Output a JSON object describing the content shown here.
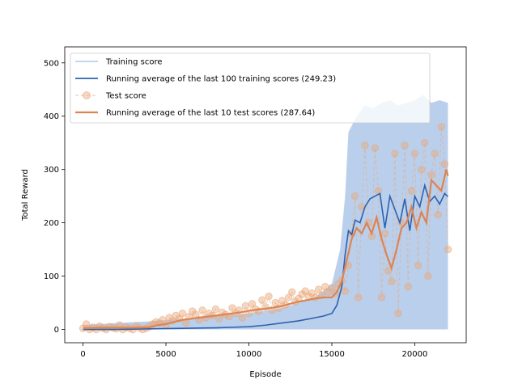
{
  "chart_data": {
    "type": "line",
    "title": "",
    "xlabel": "Episode",
    "ylabel": "Total Reward",
    "xlim": [
      -1100,
      23100
    ],
    "ylim": [
      -25,
      530
    ],
    "xticks": [
      0,
      5000,
      10000,
      15000,
      20000
    ],
    "yticks": [
      0,
      100,
      200,
      300,
      400,
      500
    ],
    "grid": false,
    "legend_position": "top-left",
    "colors": {
      "training": "#aec7e8",
      "running_train": "#2b63b0",
      "test": "#e8a87c",
      "running_test": "#dd8452"
    },
    "legend": [
      "Training score",
      "Running average of the last 100 training scores (249.23)",
      "Test score",
      "Running average of the last 10 test scores (287.64)"
    ],
    "series": [
      {
        "name": "Training score",
        "kind": "band",
        "x": [
          0,
          2000,
          4000,
          6000,
          8000,
          10000,
          11000,
          12000,
          13000,
          14000,
          15000,
          15500,
          15800,
          16000,
          16500,
          17000,
          17500,
          18000,
          18500,
          19000,
          19500,
          20000,
          20500,
          21000,
          21500,
          22000
        ],
        "low": [
          0,
          0,
          0,
          0,
          0,
          0,
          0,
          0,
          0,
          0,
          0,
          0,
          0,
          0,
          0,
          0,
          0,
          0,
          0,
          0,
          0,
          0,
          0,
          0,
          0,
          0
        ],
        "high": [
          8,
          12,
          15,
          20,
          25,
          30,
          35,
          40,
          50,
          60,
          85,
          150,
          250,
          370,
          400,
          420,
          415,
          425,
          430,
          420,
          425,
          430,
          440,
          425,
          430,
          425
        ]
      },
      {
        "name": "Running average of the last 100 training scores (249.23)",
        "x": [
          0,
          2000,
          4000,
          6000,
          8000,
          9000,
          10000,
          11000,
          12000,
          13000,
          14000,
          14500,
          15000,
          15300,
          15600,
          15800,
          16000,
          16200,
          16400,
          16700,
          17000,
          17300,
          17600,
          17900,
          18200,
          18500,
          18800,
          19100,
          19400,
          19700,
          20000,
          20300,
          20600,
          20900,
          21200,
          21500,
          21800,
          22000
        ],
        "values": [
          0,
          0,
          1,
          2,
          3,
          4,
          5,
          8,
          12,
          16,
          22,
          25,
          30,
          45,
          80,
          140,
          185,
          178,
          205,
          200,
          230,
          245,
          250,
          255,
          190,
          250,
          225,
          200,
          245,
          185,
          250,
          230,
          270,
          240,
          250,
          235,
          255,
          249
        ]
      },
      {
        "name": "Test score",
        "kind": "scatter",
        "x": [
          0,
          200,
          400,
          600,
          800,
          1000,
          1200,
          1400,
          1600,
          1800,
          2000,
          2200,
          2400,
          2600,
          2800,
          3000,
          3200,
          3400,
          3600,
          3800,
          4000,
          4200,
          4400,
          4600,
          4800,
          5000,
          5200,
          5400,
          5600,
          5800,
          6000,
          6200,
          6400,
          6600,
          6800,
          7000,
          7200,
          7400,
          7600,
          7800,
          8000,
          8200,
          8400,
          8600,
          8800,
          9000,
          9200,
          9400,
          9600,
          9800,
          10000,
          10200,
          10400,
          10600,
          10800,
          11000,
          11200,
          11400,
          11600,
          11800,
          12000,
          12200,
          12400,
          12600,
          12800,
          13000,
          13200,
          13400,
          13600,
          13800,
          14000,
          14200,
          14400,
          14600,
          14800,
          15000,
          15200,
          15400,
          15600,
          15800,
          16000,
          16200,
          16400,
          16600,
          16800,
          17000,
          17200,
          17400,
          17600,
          17800,
          18000,
          18200,
          18400,
          18600,
          18800,
          19000,
          19200,
          19400,
          19600,
          19800,
          20000,
          20200,
          20400,
          20600,
          20800,
          21000,
          21200,
          21400,
          21600,
          21800,
          22000
        ],
        "values": [
          2,
          10,
          0,
          4,
          0,
          6,
          2,
          0,
          5,
          3,
          1,
          8,
          0,
          4,
          2,
          0,
          6,
          3,
          0,
          2,
          5,
          10,
          14,
          12,
          18,
          8,
          22,
          16,
          26,
          20,
          30,
          12,
          24,
          34,
          28,
          18,
          36,
          22,
          30,
          26,
          38,
          20,
          32,
          28,
          24,
          40,
          30,
          36,
          22,
          44,
          30,
          48,
          38,
          34,
          55,
          42,
          62,
          36,
          50,
          40,
          54,
          46,
          60,
          70,
          52,
          58,
          66,
          72,
          62,
          68,
          60,
          75,
          64,
          80,
          70,
          78,
          68,
          85,
          92,
          72,
          120,
          180,
          250,
          60,
          230,
          345,
          200,
          175,
          340,
          260,
          60,
          180,
          110,
          90,
          330,
          30,
          200,
          345,
          80,
          260,
          330,
          120,
          300,
          350,
          100,
          290,
          330,
          215,
          380,
          310,
          150
        ]
      },
      {
        "name": "Running average of the last 10 test scores (287.64)",
        "x": [
          0,
          1000,
          2000,
          3000,
          4000,
          4500,
          5000,
          5500,
          6000,
          6500,
          7000,
          7500,
          8000,
          8500,
          9000,
          9500,
          10000,
          10500,
          11000,
          11500,
          12000,
          12500,
          13000,
          13500,
          14000,
          14500,
          15000,
          15300,
          15600,
          15900,
          16200,
          16500,
          16800,
          17100,
          17400,
          17700,
          18000,
          18300,
          18600,
          18900,
          19200,
          19500,
          19800,
          20100,
          20400,
          20700,
          21000,
          21300,
          21600,
          21900,
          22000
        ],
        "values": [
          2,
          3,
          3,
          3,
          4,
          8,
          10,
          14,
          18,
          20,
          22,
          24,
          26,
          28,
          30,
          32,
          35,
          37,
          39,
          41,
          44,
          48,
          52,
          55,
          58,
          60,
          60,
          70,
          90,
          130,
          170,
          190,
          180,
          200,
          180,
          210,
          170,
          140,
          115,
          150,
          190,
          200,
          230,
          190,
          220,
          200,
          280,
          270,
          260,
          300,
          288
        ]
      }
    ]
  }
}
